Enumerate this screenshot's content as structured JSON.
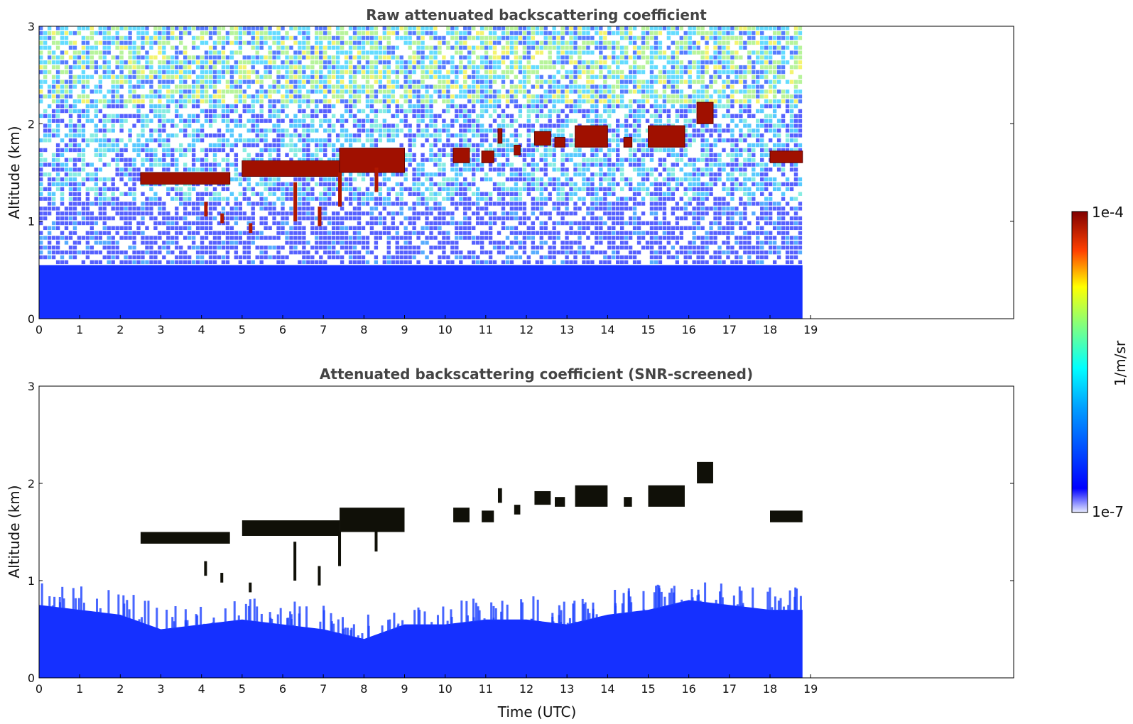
{
  "colors": {
    "jet_low": "#0000ff",
    "jet_high": "#800000",
    "cloud_dark": "#101008",
    "background": "#ffffff"
  },
  "chart_data": [
    {
      "type": "heatmap",
      "title": "Raw attenuated backscattering coefficient",
      "xlabel": "",
      "ylabel": "Altitude (km)",
      "xlim": [
        0,
        24
      ],
      "ylim": [
        0,
        3
      ],
      "xticks": [
        "0",
        "1",
        "2",
        "3",
        "4",
        "5",
        "6",
        "7",
        "8",
        "9",
        "10",
        "11",
        "12",
        "13",
        "14",
        "15",
        "16",
        "17",
        "18",
        "19"
      ],
      "yticks": [
        "0",
        "1",
        "2",
        "3"
      ],
      "data_end_time": 18.8,
      "boundary_layer_top_km": 0.55,
      "cloud_layers": [
        {
          "start": 2.5,
          "end": 4.7,
          "base": 1.38,
          "top": 1.5
        },
        {
          "start": 5.0,
          "end": 7.4,
          "base": 1.46,
          "top": 1.62
        },
        {
          "start": 7.4,
          "end": 9.0,
          "base": 1.5,
          "top": 1.75
        },
        {
          "start": 10.2,
          "end": 10.6,
          "base": 1.6,
          "top": 1.75
        },
        {
          "start": 10.9,
          "end": 11.2,
          "base": 1.6,
          "top": 1.72
        },
        {
          "start": 11.3,
          "end": 11.4,
          "base": 1.8,
          "top": 1.95
        },
        {
          "start": 11.7,
          "end": 11.85,
          "base": 1.68,
          "top": 1.78
        },
        {
          "start": 12.2,
          "end": 12.6,
          "base": 1.78,
          "top": 1.92
        },
        {
          "start": 12.7,
          "end": 12.95,
          "base": 1.76,
          "top": 1.86
        },
        {
          "start": 13.2,
          "end": 14.0,
          "base": 1.76,
          "top": 1.98
        },
        {
          "start": 14.4,
          "end": 14.6,
          "base": 1.76,
          "top": 1.86
        },
        {
          "start": 15.0,
          "end": 15.9,
          "base": 1.76,
          "top": 1.98
        },
        {
          "start": 16.2,
          "end": 16.6,
          "base": 2.0,
          "top": 2.22
        },
        {
          "start": 18.0,
          "end": 18.8,
          "base": 1.6,
          "top": 1.72
        }
      ],
      "fallstreaks": [
        {
          "x": 4.1,
          "bottom": 1.05,
          "top": 1.2
        },
        {
          "x": 4.5,
          "bottom": 0.98,
          "top": 1.08
        },
        {
          "x": 5.2,
          "bottom": 0.88,
          "top": 0.98
        },
        {
          "x": 6.3,
          "bottom": 1.0,
          "top": 1.4
        },
        {
          "x": 6.9,
          "bottom": 0.95,
          "top": 1.15
        },
        {
          "x": 7.4,
          "bottom": 1.15,
          "top": 1.5
        },
        {
          "x": 8.3,
          "bottom": 1.3,
          "top": 1.55
        }
      ]
    },
    {
      "type": "heatmap",
      "title": "Attenuated backscattering coefficient (SNR-screened)",
      "xlabel": "Time (UTC)",
      "ylabel": "Altitude (km)",
      "xlim": [
        0,
        24
      ],
      "ylim": [
        0,
        3
      ],
      "xticks": [
        "0",
        "1",
        "2",
        "3",
        "4",
        "5",
        "6",
        "7",
        "8",
        "9",
        "10",
        "11",
        "12",
        "13",
        "14",
        "15",
        "16",
        "17",
        "18",
        "19"
      ],
      "yticks": [
        "0",
        "1",
        "2",
        "3"
      ],
      "data_end_time": 18.8,
      "boundary_layer_top_km": [
        [
          0,
          0.75
        ],
        [
          2,
          0.65
        ],
        [
          3,
          0.5
        ],
        [
          5,
          0.6
        ],
        [
          7,
          0.5
        ],
        [
          8,
          0.4
        ],
        [
          9,
          0.55
        ],
        [
          10,
          0.55
        ],
        [
          11,
          0.6
        ],
        [
          12,
          0.6
        ],
        [
          13,
          0.55
        ],
        [
          14,
          0.65
        ],
        [
          15,
          0.7
        ],
        [
          16,
          0.8
        ],
        [
          17,
          0.75
        ],
        [
          18,
          0.7
        ],
        [
          18.8,
          0.7
        ]
      ]
    }
  ],
  "colorbar": {
    "min_label": "1e-7",
    "max_label": "1e-4",
    "label": "1/m/sr",
    "scale": "log"
  }
}
